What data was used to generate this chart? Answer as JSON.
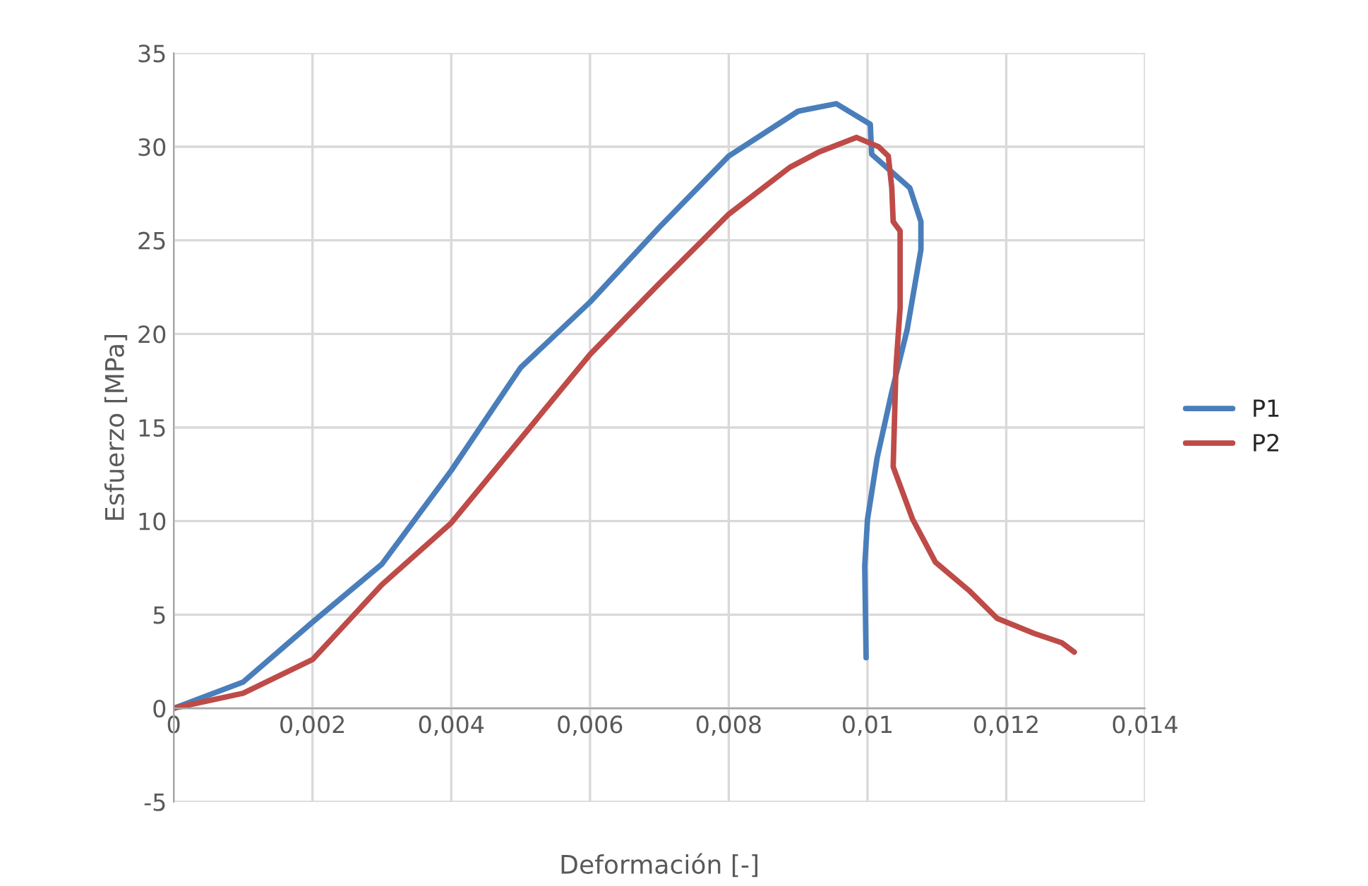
{
  "chart_data": {
    "type": "line",
    "xlabel": "Deformación [-]",
    "ylabel": "Esfuerzo [MPa]",
    "xlim": [
      0,
      0.014
    ],
    "ylim": [
      -5,
      35
    ],
    "xticks": [
      0,
      {
        "value": 0.002,
        "label": "0,002"
      },
      {
        "value": 0.004,
        "label": "0,004"
      },
      {
        "value": 0.006,
        "label": "0,006"
      },
      {
        "value": 0.008,
        "label": "0,008"
      },
      {
        "value": 0.01,
        "label": "0,01"
      },
      {
        "value": 0.012,
        "label": "0,012"
      },
      {
        "value": 0.014,
        "label": "0,014"
      }
    ],
    "yticks": [
      -5,
      0,
      5,
      10,
      15,
      20,
      25,
      30,
      35
    ],
    "grid": true,
    "legend": "right",
    "marker": "none",
    "line_style": "solid",
    "series": [
      {
        "name": "P1",
        "color": "#4a7ebb",
        "x": [
          0,
          0.001,
          0.002,
          0.003,
          0.004,
          0.005,
          0.006,
          0.007,
          0.008,
          0.009,
          0.00955,
          0.01004,
          0.01006,
          0.01061,
          0.01077,
          0.01077,
          0.01057,
          0.01035,
          0.01014,
          0.01,
          0.00996,
          0.00998
        ],
        "values": [
          0,
          1.4,
          4.6,
          7.7,
          12.7,
          18.2,
          21.7,
          25.7,
          29.5,
          31.9,
          32.3,
          31.2,
          29.6,
          27.8,
          26.0,
          24.5,
          20.2,
          16.9,
          13.4,
          10.1,
          7.6,
          2.7
        ]
      },
      {
        "name": "P2",
        "color": "#be4b48",
        "x": [
          0,
          0.001,
          0.002,
          0.003,
          0.004,
          0.005,
          0.006,
          0.007,
          0.008,
          0.00888,
          0.00929,
          0.00984,
          0.01016,
          0.0103,
          0.01035,
          0.01037,
          0.01047,
          0.01047,
          0.01041,
          0.01037,
          0.01065,
          0.01098,
          0.01146,
          0.01187,
          0.0124,
          0.0128,
          0.01298
        ],
        "values": [
          0,
          0.8,
          2.6,
          6.6,
          9.9,
          14.4,
          18.9,
          22.7,
          26.4,
          28.9,
          29.7,
          30.5,
          30.0,
          29.5,
          27.8,
          26.0,
          25.5,
          21.4,
          18.2,
          12.9,
          10.1,
          7.8,
          6.3,
          4.8,
          4.0,
          3.5,
          3.0
        ]
      }
    ]
  }
}
